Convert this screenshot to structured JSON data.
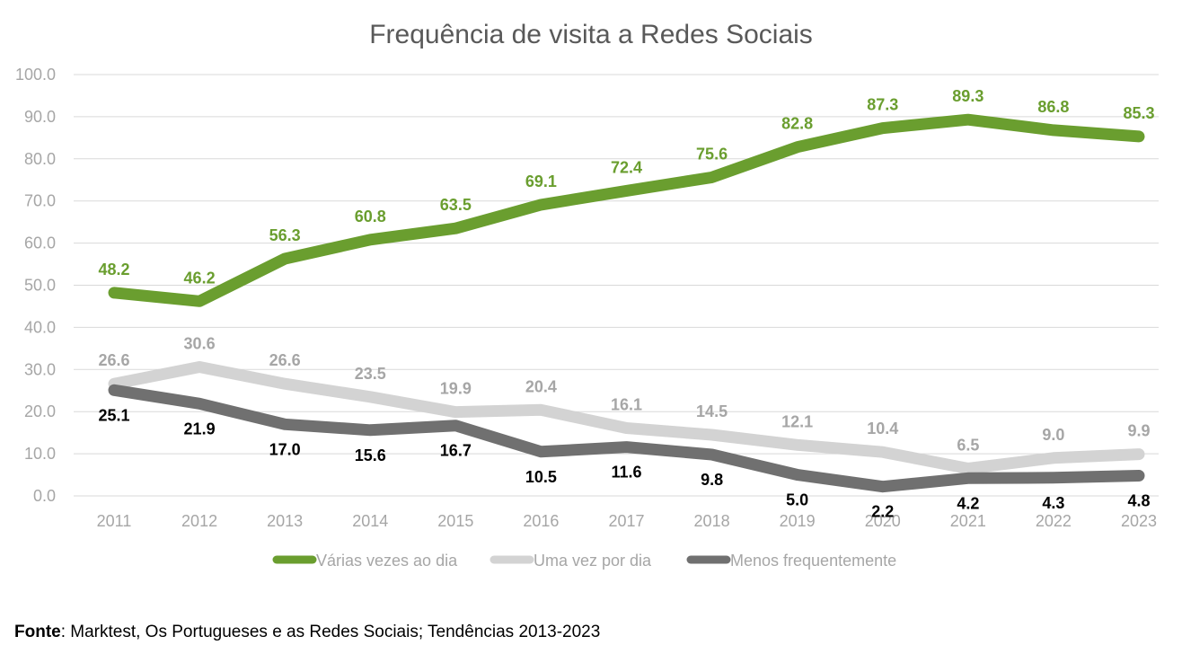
{
  "chart_data": {
    "type": "line",
    "title": "Frequência de visita a Redes Sociais",
    "categories": [
      "2011",
      "2012",
      "2013",
      "2014",
      "2015",
      "2016",
      "2017",
      "2018",
      "2019",
      "2020",
      "2021",
      "2022",
      "2023"
    ],
    "y_ticks": [
      "0.0",
      "10.0",
      "20.0",
      "30.0",
      "40.0",
      "50.0",
      "60.0",
      "70.0",
      "80.0",
      "90.0",
      "100.0"
    ],
    "ylim": [
      0,
      100
    ],
    "grid": true,
    "legend_position": "bottom",
    "series": [
      {
        "name": "Várias vezes ao dia",
        "color": "#6a9e2f",
        "label_color": "#6a9e2f",
        "label_pos": "above",
        "values": [
          48.2,
          46.2,
          56.3,
          60.8,
          63.5,
          69.1,
          72.4,
          75.6,
          82.8,
          87.3,
          89.3,
          86.8,
          85.3
        ],
        "labels": [
          "48.2",
          "46.2",
          "56.3",
          "60.8",
          "63.5",
          "69.1",
          "72.4",
          "75.6",
          "82.8",
          "87.3",
          "89.3",
          "86.8",
          "85.3"
        ]
      },
      {
        "name": "Uma vez por dia",
        "color": "#d3d3d3",
        "label_color": "#a6a6a6",
        "label_pos": "above",
        "values": [
          26.6,
          30.6,
          26.6,
          23.5,
          19.9,
          20.4,
          16.1,
          14.5,
          12.1,
          10.4,
          6.5,
          9.0,
          9.9
        ],
        "labels": [
          "26.6",
          "30.6",
          "26.6",
          "23.5",
          "19.9",
          "20.4",
          "16.1",
          "14.5",
          "12.1",
          "10.4",
          "6.5",
          "9.0",
          "9.9"
        ]
      },
      {
        "name": "Menos frequentemente",
        "color": "#707070",
        "label_color": "#000000",
        "label_pos": "below",
        "values": [
          25.1,
          21.9,
          17.0,
          15.6,
          16.7,
          10.5,
          11.6,
          9.8,
          5.0,
          2.2,
          4.2,
          4.3,
          4.8
        ],
        "labels": [
          "25.1",
          "21.9",
          "17.0",
          "15.6",
          "16.7",
          "10.5",
          "11.6",
          "9.8",
          "5.0",
          "2.2",
          "4.2",
          "4.3",
          "4.8"
        ]
      }
    ]
  },
  "source": {
    "label": "Fonte",
    "text": ": Marktest, Os Portugueses e as Redes Sociais; Tendências 2013-2023"
  }
}
